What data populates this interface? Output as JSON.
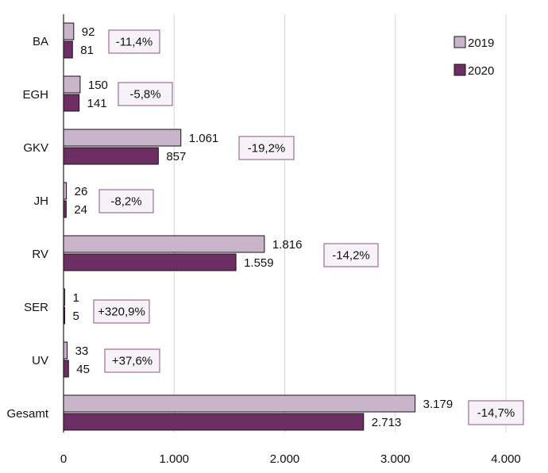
{
  "chart_data": {
    "type": "bar",
    "orientation": "horizontal",
    "categories": [
      "BA",
      "EGH",
      "GKV",
      "JH",
      "RV",
      "SER",
      "UV",
      "Gesamt"
    ],
    "series": [
      {
        "name": "2019",
        "values": [
          92,
          150,
          1061,
          26,
          1816,
          1,
          33,
          3179
        ],
        "labels": [
          "92",
          "150",
          "1.061",
          "26",
          "1.816",
          "1",
          "33",
          "3.179"
        ],
        "color": "#c9b5c9"
      },
      {
        "name": "2020",
        "values": [
          81,
          141,
          857,
          24,
          1559,
          5,
          45,
          2713
        ],
        "labels": [
          "81",
          "141",
          "857",
          "24",
          "1.559",
          "5",
          "45",
          "2.713"
        ],
        "color": "#6d2f63"
      }
    ],
    "change_labels": [
      "-11,4%",
      "-5,8%",
      "-19,2%",
      "-8,2%",
      "-14,2%",
      "+320,9%",
      "+37,6%",
      "-14,7%"
    ],
    "xlim": [
      0,
      4000
    ],
    "x_ticks": [
      0,
      1000,
      2000,
      3000,
      4000
    ],
    "x_tick_labels": [
      "0",
      "1.000",
      "2.000",
      "3.000",
      "4.000"
    ],
    "grid": true,
    "legend_position": "top-right",
    "colors": {
      "grid": "#d6d6d6",
      "axis": "#222222",
      "bar_stroke": "#1b1018",
      "change_box_fill": "#f7f2f7",
      "change_box_stroke": "#9b6f98",
      "text": "#111111"
    }
  }
}
